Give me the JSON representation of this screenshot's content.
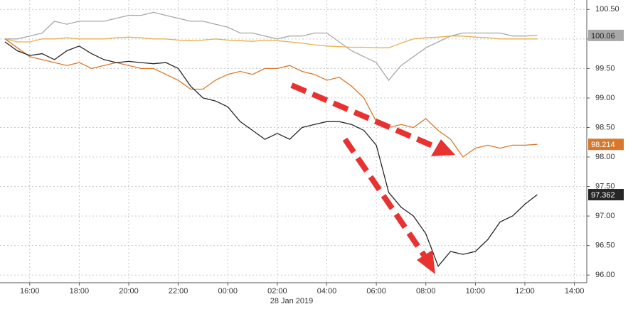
{
  "chart_data": {
    "type": "line",
    "date_label": "28 Jan 2019",
    "x": [
      -9,
      -8.5,
      -8,
      -7.5,
      -7,
      -6.5,
      -6,
      -5.5,
      -5,
      -4.5,
      -4,
      -3.5,
      -3,
      -2.5,
      -2,
      -1.5,
      -1,
      -0.5,
      0,
      0.5,
      1,
      1.5,
      2,
      2.5,
      3,
      3.5,
      4,
      4.5,
      5,
      5.5,
      6,
      6.5,
      7,
      7.5,
      8,
      8.5,
      9,
      9.5,
      10,
      10.5,
      11,
      11.5,
      12,
      12.5
    ],
    "xlim": [
      -9.2,
      14.5
    ],
    "xticks": [
      {
        "value": -8,
        "label": "16:00"
      },
      {
        "value": -6,
        "label": "18:00"
      },
      {
        "value": -4,
        "label": "20:00"
      },
      {
        "value": -2,
        "label": "22:00"
      },
      {
        "value": 0,
        "label": "00:00"
      },
      {
        "value": 2,
        "label": "02:00"
      },
      {
        "value": 4,
        "label": "04:00"
      },
      {
        "value": 6,
        "label": "06:00"
      },
      {
        "value": 8,
        "label": "08:00"
      },
      {
        "value": 10,
        "label": "10:00"
      },
      {
        "value": 12,
        "label": "12:00"
      },
      {
        "value": 14,
        "label": "14:00"
      }
    ],
    "ylim": [
      95.87,
      100.66
    ],
    "yticks": [
      {
        "value": 96,
        "label": "96.00"
      },
      {
        "value": 96.5,
        "label": "96.50"
      },
      {
        "value": 97,
        "label": "97.00"
      },
      {
        "value": 97.5,
        "label": "97.50"
      },
      {
        "value": 98,
        "label": "98.00"
      },
      {
        "value": 98.5,
        "label": "98.50"
      },
      {
        "value": 99,
        "label": "99.00"
      },
      {
        "value": 99.5,
        "label": "99.50"
      },
      {
        "value": 100,
        "label": "100.00"
      },
      {
        "value": 100.5,
        "label": "100.50"
      }
    ],
    "grid": true,
    "series": [
      {
        "color": "#a8a8a8",
        "end_label": "100.06",
        "values": [
          100.0,
          100.0,
          100.05,
          100.1,
          100.3,
          100.25,
          100.3,
          100.3,
          100.3,
          100.35,
          100.4,
          100.4,
          100.45,
          100.4,
          100.35,
          100.3,
          100.3,
          100.25,
          100.2,
          100.1,
          100.1,
          100.05,
          100.0,
          100.05,
          100.05,
          100.1,
          100.1,
          99.95,
          99.8,
          99.7,
          99.6,
          99.3,
          99.55,
          99.7,
          99.85,
          99.95,
          100.05,
          100.1,
          100.1,
          100.1,
          100.1,
          100.05,
          100.05,
          100.06
        ]
      },
      {
        "color": "#e6b04e",
        "values": [
          100.0,
          99.95,
          99.95,
          100.0,
          100.0,
          100.02,
          100.0,
          100.0,
          100.0,
          100.02,
          100.03,
          100.02,
          100.0,
          100.0,
          99.98,
          99.97,
          99.98,
          100.0,
          99.98,
          99.97,
          99.96,
          99.98,
          99.97,
          99.95,
          99.93,
          99.9,
          99.88,
          99.87,
          99.86,
          99.86,
          99.85,
          99.85,
          99.93,
          100.0,
          100.02,
          100.03,
          100.05,
          100.05,
          100.03,
          100.02,
          100.0,
          100.0,
          100.0,
          100.0
        ]
      },
      {
        "color": "#d9782c",
        "end_label": "98.214",
        "values": [
          100.0,
          99.85,
          99.7,
          99.65,
          99.6,
          99.55,
          99.6,
          99.5,
          99.55,
          99.6,
          99.55,
          99.5,
          99.5,
          99.4,
          99.3,
          99.15,
          99.15,
          99.3,
          99.4,
          99.45,
          99.4,
          99.5,
          99.5,
          99.55,
          99.45,
          99.4,
          99.3,
          99.35,
          99.2,
          99.0,
          98.6,
          98.5,
          98.55,
          98.5,
          98.65,
          98.45,
          98.3,
          98.0,
          98.15,
          98.2,
          98.15,
          98.2,
          98.2,
          98.214
        ]
      },
      {
        "color": "#262626",
        "end_label": "97.362",
        "values": [
          99.95,
          99.8,
          99.72,
          99.75,
          99.65,
          99.8,
          99.88,
          99.75,
          99.65,
          99.6,
          99.62,
          99.6,
          99.58,
          99.6,
          99.5,
          99.2,
          99.0,
          98.95,
          98.85,
          98.6,
          98.45,
          98.3,
          98.4,
          98.3,
          98.5,
          98.55,
          98.6,
          98.6,
          98.55,
          98.45,
          98.2,
          97.4,
          97.15,
          97.0,
          96.7,
          96.15,
          96.4,
          96.35,
          96.4,
          96.6,
          96.9,
          97.0,
          97.2,
          97.362
        ]
      }
    ]
  }
}
